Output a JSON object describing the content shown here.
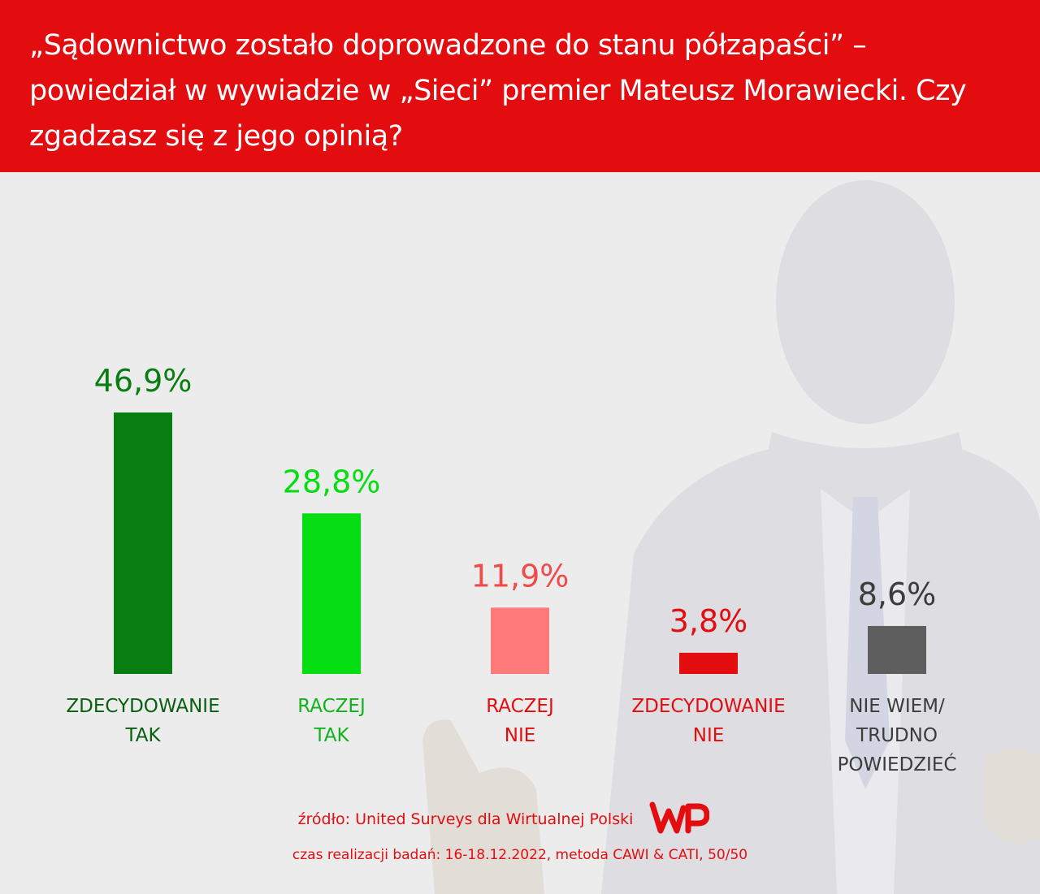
{
  "header": {
    "title": "„Sądownictwo zostało doprowadzone do stanu półzapaści” – powiedział w wywiadzie w „Sieci” premier Mateusz Morawiecki. Czy zgadzasz się z jego opinią?"
  },
  "chart_data": {
    "type": "bar",
    "categories": [
      [
        "ZDECYDOWANIE",
        "TAK"
      ],
      [
        "RACZEJ",
        "TAK"
      ],
      [
        "RACZEJ",
        "NIE"
      ],
      [
        "ZDECYDOWANIE",
        "NIE"
      ],
      [
        "NIE WIEM/",
        "TRUDNO",
        "POWIEDZIEĆ"
      ]
    ],
    "values": [
      46.9,
      28.8,
      11.9,
      3.8,
      8.6
    ],
    "value_labels": [
      "46,9%",
      "28,8%",
      "11,9%",
      "3,8%",
      "8,6%"
    ],
    "colors": [
      "#0a7d12",
      "#05dd13",
      "#ff7b7b",
      "#e30d0f",
      "#5e5e5e"
    ],
    "value_label_colors": [
      "#0a7d12",
      "#05dd13",
      "#f04b4b",
      "#e30d0f",
      "#3c3c3c"
    ],
    "category_label_colors": [
      "#0a5e10",
      "#12b21c",
      "#e30d0f",
      "#e30d0f",
      "#3c3c3c"
    ],
    "ylim": [
      0,
      50
    ],
    "grid": false
  },
  "footer": {
    "source": "źródło: United Surveys dla Wirtualnej Polski",
    "logo_text": "WP",
    "dates": "czas realizacji badań: 16-18.12.2022, metoda CAWI & CATI, 50/50"
  },
  "colors": {
    "brand_red": "#e30d0f",
    "background": "#ececec"
  }
}
